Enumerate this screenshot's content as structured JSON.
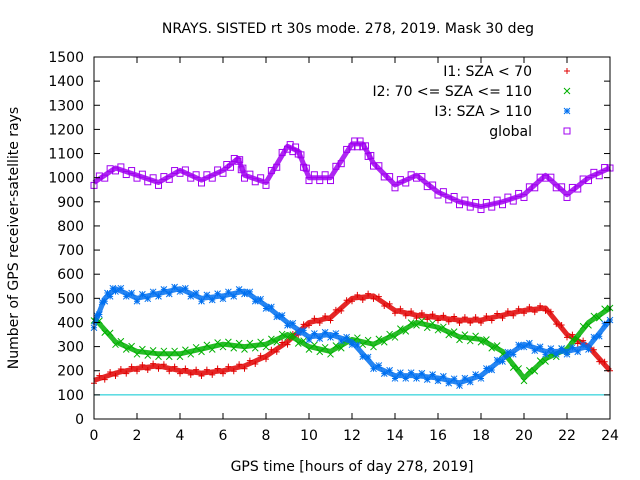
{
  "chart_data": {
    "type": "scatter",
    "title": "NRAYS. SISTED rt 30s mode. 278, 2019. Mask 30 deg",
    "xlabel": "GPS time [hours of day 278, 2019]",
    "ylabel": "Number of GPS receiver-satellite rays",
    "xlim": [
      0,
      24
    ],
    "ylim": [
      0,
      1500
    ],
    "xticks": [
      0,
      2,
      4,
      6,
      8,
      10,
      12,
      14,
      16,
      18,
      20,
      22,
      24
    ],
    "yticks": [
      0,
      100,
      200,
      300,
      400,
      500,
      600,
      700,
      800,
      900,
      1000,
      1100,
      1200,
      1300,
      1400,
      1500
    ],
    "legend_position": "top-right",
    "reference_line": {
      "y": 100,
      "color": "#00c8d2"
    },
    "series": [
      {
        "name": "I1: SZA < 70",
        "color": "#e00000",
        "marker": "plus",
        "x": [
          0,
          1,
          2,
          3,
          4,
          5,
          6,
          7,
          8,
          9,
          10,
          11,
          12,
          13,
          14,
          15,
          16,
          17,
          18,
          19,
          20,
          21,
          22,
          23,
          24
        ],
        "y": [
          160,
          190,
          210,
          220,
          200,
          190,
          200,
          220,
          260,
          320,
          400,
          420,
          500,
          510,
          450,
          430,
          420,
          410,
          410,
          430,
          450,
          460,
          350,
          300,
          200
        ]
      },
      {
        "name": "I2: 70 <= SZA <= 110",
        "color": "#00b000",
        "marker": "x",
        "x": [
          0,
          1,
          2,
          3,
          4,
          5,
          6,
          7,
          8,
          9,
          10,
          11,
          12,
          13,
          14,
          15,
          16,
          17,
          18,
          19,
          20,
          21,
          22,
          23,
          24
        ],
        "y": [
          420,
          320,
          280,
          270,
          270,
          290,
          310,
          300,
          310,
          350,
          300,
          280,
          330,
          310,
          350,
          400,
          380,
          340,
          330,
          280,
          170,
          250,
          290,
          400,
          460
        ]
      },
      {
        "name": "I3: SZA > 110",
        "color": "#0070f0",
        "marker": "star",
        "x": [
          0,
          0.5,
          1,
          2,
          3,
          4,
          5,
          6,
          7,
          8,
          9,
          10,
          11,
          12,
          13,
          14,
          15,
          16,
          17,
          18,
          19,
          20,
          21,
          22,
          23,
          24
        ],
        "y": [
          390,
          500,
          540,
          500,
          520,
          540,
          500,
          510,
          530,
          470,
          400,
          340,
          350,
          320,
          220,
          180,
          180,
          170,
          150,
          180,
          250,
          310,
          280,
          280,
          300,
          410
        ]
      },
      {
        "name": "global",
        "color": "#a000f0",
        "marker": "square",
        "x": [
          0,
          1,
          2,
          3,
          4,
          5,
          6,
          6.7,
          7,
          8,
          9,
          9.5,
          10,
          11,
          12,
          12.5,
          13,
          14,
          15,
          16,
          17,
          18,
          19,
          20,
          21,
          22,
          23,
          24
        ],
        "y": [
          980,
          1040,
          1010,
          980,
          1030,
          990,
          1030,
          1080,
          1010,
          980,
          1130,
          1110,
          1000,
          1000,
          1140,
          1140,
          1060,
          970,
          1010,
          940,
          900,
          880,
          900,
          930,
          1010,
          930,
          1000,
          1040
        ]
      }
    ]
  }
}
